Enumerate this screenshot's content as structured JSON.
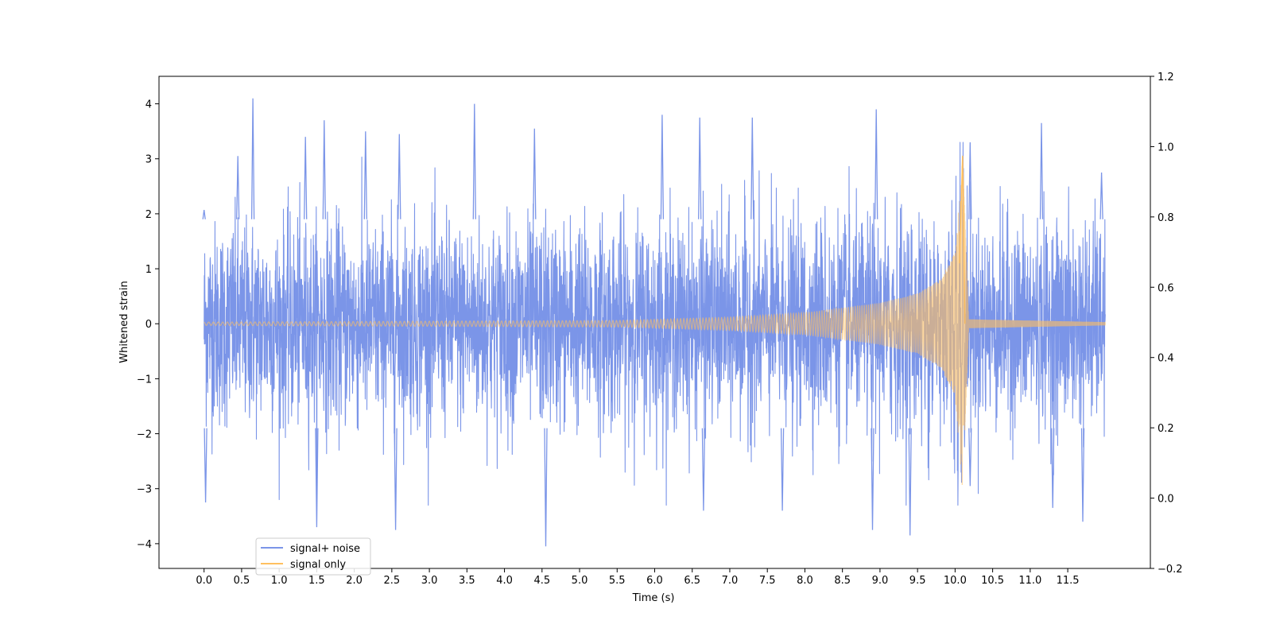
{
  "chart_data": {
    "type": "line",
    "title": "",
    "xlabel": "Time (s)",
    "ylabel": "Whitened strain",
    "xlim": [
      -0.6,
      12.6
    ],
    "xticks": [
      0.0,
      0.5,
      1.0,
      1.5,
      2.0,
      2.5,
      3.0,
      3.5,
      4.0,
      4.5,
      5.0,
      5.5,
      6.0,
      6.5,
      7.0,
      7.5,
      8.0,
      8.5,
      9.0,
      9.5,
      10.0,
      10.5,
      11.0,
      11.5
    ],
    "xtick_labels": [
      "0.0",
      "0.5",
      "1.0",
      "1.5",
      "2.0",
      "2.5",
      "3.0",
      "3.5",
      "4.0",
      "4.5",
      "5.0",
      "5.5",
      "6.0",
      "6.5",
      "7.0",
      "7.5",
      "8.0",
      "8.5",
      "9.0",
      "9.5",
      "10.0",
      "10.5",
      "11.0",
      "11.5"
    ],
    "y_left": {
      "lim": [
        -4.45,
        4.5
      ],
      "ticks": [
        -4,
        -3,
        -2,
        -1,
        0,
        1,
        2,
        3,
        4
      ],
      "tick_labels": [
        "−4",
        "−3",
        "−2",
        "−1",
        "0",
        "1",
        "2",
        "3",
        "4"
      ]
    },
    "y_right": {
      "lim": [
        -0.2,
        1.2
      ],
      "ticks": [
        -0.2,
        0.0,
        0.2,
        0.4,
        0.6,
        0.8,
        1.0,
        1.2
      ],
      "tick_labels": [
        "−0.2",
        "0.0",
        "0.2",
        "0.4",
        "0.6",
        "0.8",
        "1.0",
        "1.2"
      ]
    },
    "grid": false,
    "legend_position": "lower-left",
    "series": [
      {
        "name": "signal+ noise",
        "color": "#7b95e8",
        "axis": "left",
        "x_range": [
          0.0,
          12.0
        ],
        "envelope_typical": [
          -2.0,
          2.0
        ],
        "peaks": [
          {
            "x": 0.0,
            "y": 2.07
          },
          {
            "x": 0.02,
            "y": -3.25
          },
          {
            "x": 0.45,
            "y": 3.05
          },
          {
            "x": 0.65,
            "y": 4.1
          },
          {
            "x": 1.35,
            "y": 3.4
          },
          {
            "x": 1.5,
            "y": -3.7
          },
          {
            "x": 1.6,
            "y": 3.7
          },
          {
            "x": 2.15,
            "y": 3.5
          },
          {
            "x": 2.55,
            "y": -3.75
          },
          {
            "x": 2.6,
            "y": 3.45
          },
          {
            "x": 3.6,
            "y": 4.0
          },
          {
            "x": 4.4,
            "y": 3.55
          },
          {
            "x": 4.55,
            "y": -4.05
          },
          {
            "x": 6.1,
            "y": 3.8
          },
          {
            "x": 6.6,
            "y": 3.75
          },
          {
            "x": 6.65,
            "y": -3.4
          },
          {
            "x": 7.3,
            "y": 3.75
          },
          {
            "x": 7.7,
            "y": -3.4
          },
          {
            "x": 8.95,
            "y": 3.9
          },
          {
            "x": 8.9,
            "y": -3.75
          },
          {
            "x": 9.4,
            "y": -3.85
          },
          {
            "x": 10.2,
            "y": 3.3
          },
          {
            "x": 10.2,
            "y": -2.95
          },
          {
            "x": 11.15,
            "y": 3.65
          },
          {
            "x": 11.3,
            "y": -3.35
          },
          {
            "x": 11.7,
            "y": -3.6
          },
          {
            "x": 11.95,
            "y": 2.75
          }
        ]
      },
      {
        "name": "signal only",
        "color": "#ffc060",
        "axis": "left",
        "x_range": [
          0.0,
          12.0
        ],
        "merger_time": 10.1,
        "peak_amplitude": 3.05,
        "min_amplitude": -1.85,
        "envelope": [
          {
            "x": 0.0,
            "amp": 0.03
          },
          {
            "x": 5.5,
            "amp": 0.06
          },
          {
            "x": 7.0,
            "amp": 0.12
          },
          {
            "x": 8.0,
            "amp": 0.2
          },
          {
            "x": 9.0,
            "amp": 0.38
          },
          {
            "x": 9.5,
            "amp": 0.55
          },
          {
            "x": 9.8,
            "amp": 0.8
          },
          {
            "x": 10.0,
            "amp": 1.3
          },
          {
            "x": 10.1,
            "amp": 3.05
          },
          {
            "x": 10.18,
            "amp": 0.08
          },
          {
            "x": 12.0,
            "amp": 0.03
          }
        ]
      }
    ]
  }
}
